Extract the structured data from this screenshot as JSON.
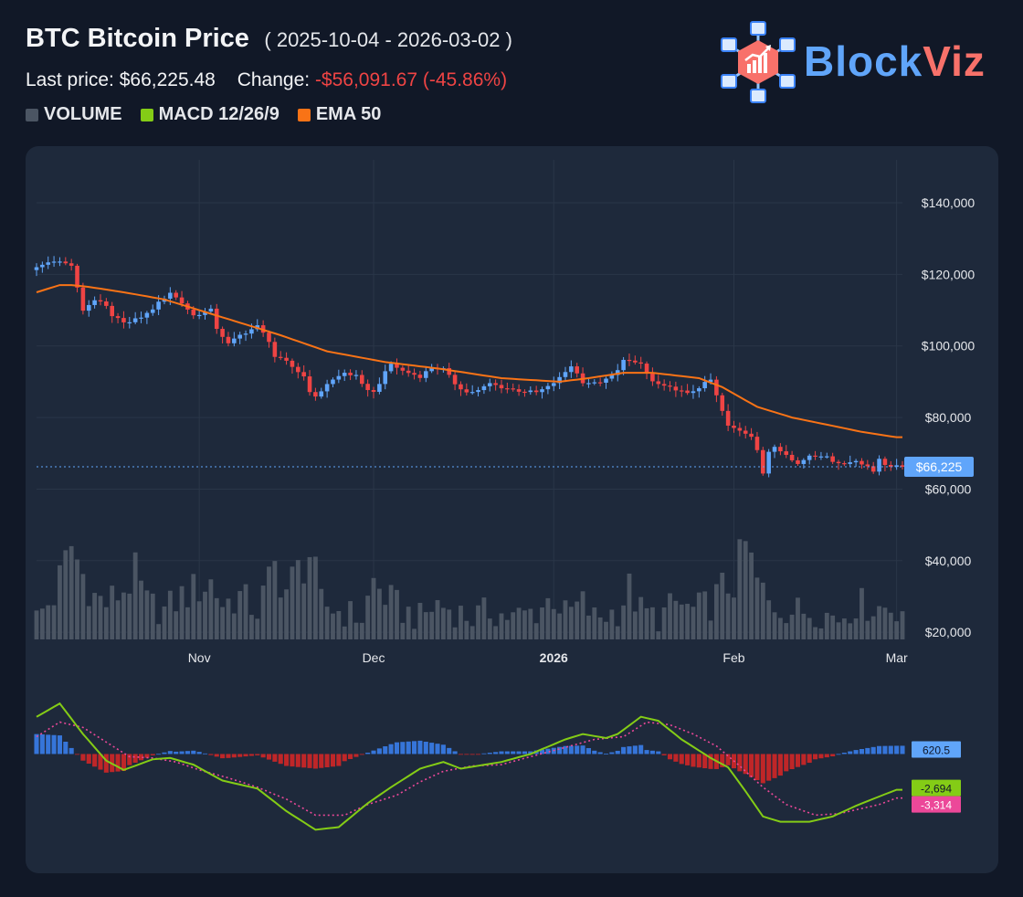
{
  "header": {
    "title": "BTC Bitcoin Price",
    "date_range": "( 2025-10-04 - 2026-03-02 )",
    "last_price_label": "Last price:",
    "last_price_value": "$66,225.48",
    "change_label": "Change:",
    "change_value": "-$56,091.67 (-45.86%)"
  },
  "logo": {
    "part1": "Block",
    "part2": "Viz"
  },
  "legend": [
    {
      "label": "VOLUME",
      "color": "#4b5563"
    },
    {
      "label": "MACD 12/26/9",
      "color": "#84cc16"
    },
    {
      "label": "EMA 50",
      "color": "#f97316"
    }
  ],
  "chart_data": [
    {
      "type": "candlestick",
      "title": "BTC Bitcoin Price",
      "y_axis": {
        "ticks": [
          "$140,000",
          "$120,000",
          "$100,000",
          "$80,000",
          "$60,000",
          "$40,000",
          "$20,000"
        ],
        "tick_values": [
          140000,
          120000,
          100000,
          80000,
          60000,
          40000,
          20000
        ],
        "range": [
          18000,
          152000
        ]
      },
      "x_axis": {
        "ticks": [
          "Nov",
          "Dec",
          "2026",
          "Feb",
          "Mar"
        ],
        "tick_index": [
          28,
          58,
          89,
          120,
          148
        ],
        "range_index": [
          0,
          149
        ]
      },
      "last_price_label": "$66,225",
      "last_price": 66225,
      "colors": {
        "up": "#60a5fa",
        "down": "#ef4444",
        "ema": "#f97316",
        "volume": "#4b5563",
        "grid": "#2a3648",
        "last": "#60a5fa"
      },
      "close_anchors": [
        [
          0,
          122000
        ],
        [
          3,
          124000
        ],
        [
          6,
          122500
        ],
        [
          7,
          116000
        ],
        [
          8,
          110000
        ],
        [
          10,
          113000
        ],
        [
          12,
          111000
        ],
        [
          13,
          108000
        ],
        [
          16,
          106500
        ],
        [
          19,
          109000
        ],
        [
          22,
          113500
        ],
        [
          23,
          115000
        ],
        [
          25,
          112000
        ],
        [
          27,
          108500
        ],
        [
          30,
          110000
        ],
        [
          31,
          105000
        ],
        [
          33,
          100500
        ],
        [
          35,
          103000
        ],
        [
          38,
          105500
        ],
        [
          40,
          101500
        ],
        [
          41,
          97000
        ],
        [
          43,
          95500
        ],
        [
          46,
          91500
        ],
        [
          47,
          87500
        ],
        [
          48,
          85500
        ],
        [
          50,
          89500
        ],
        [
          53,
          92500
        ],
        [
          55,
          91500
        ],
        [
          56,
          89000
        ],
        [
          58,
          87000
        ],
        [
          60,
          92500
        ],
        [
          61,
          95000
        ],
        [
          63,
          93000
        ],
        [
          66,
          91500
        ],
        [
          68,
          94000
        ],
        [
          70,
          93500
        ],
        [
          72,
          89500
        ],
        [
          74,
          87000
        ],
        [
          76,
          87500
        ],
        [
          78,
          89500
        ],
        [
          80,
          88500
        ],
        [
          83,
          87500
        ],
        [
          86,
          87000
        ],
        [
          88,
          88500
        ],
        [
          90,
          91000
        ],
        [
          92,
          94500
        ],
        [
          94,
          90000
        ],
        [
          96,
          89500
        ],
        [
          98,
          90500
        ],
        [
          100,
          93000
        ],
        [
          101,
          96500
        ],
        [
          103,
          95000
        ],
        [
          104,
          95000
        ],
        [
          106,
          90000
        ],
        [
          108,
          88500
        ],
        [
          110,
          88000
        ],
        [
          112,
          86500
        ],
        [
          114,
          88500
        ],
        [
          116,
          90500
        ],
        [
          117,
          86000
        ],
        [
          119,
          77500
        ],
        [
          121,
          76500
        ],
        [
          123,
          75000
        ],
        [
          124,
          71000
        ],
        [
          125,
          64000
        ],
        [
          126,
          70500
        ],
        [
          127,
          72000
        ],
        [
          129,
          70000
        ],
        [
          130,
          68000
        ],
        [
          131,
          67000
        ],
        [
          133,
          69500
        ],
        [
          135,
          69500
        ],
        [
          137,
          68000
        ],
        [
          139,
          67000
        ],
        [
          141,
          68000
        ],
        [
          143,
          66500
        ],
        [
          144,
          64500
        ],
        [
          145,
          68500
        ],
        [
          146,
          67000
        ],
        [
          147,
          66500
        ],
        [
          148,
          66225
        ]
      ],
      "ema_anchors": [
        [
          0,
          115000
        ],
        [
          4,
          117000
        ],
        [
          6,
          117000
        ],
        [
          9,
          116500
        ],
        [
          15,
          115000
        ],
        [
          22,
          113000
        ],
        [
          32,
          108000
        ],
        [
          42,
          103000
        ],
        [
          50,
          98500
        ],
        [
          60,
          95500
        ],
        [
          70,
          93500
        ],
        [
          80,
          91000
        ],
        [
          90,
          90000
        ],
        [
          95,
          91000
        ],
        [
          101,
          92500
        ],
        [
          106,
          92500
        ],
        [
          114,
          91000
        ],
        [
          118,
          88500
        ],
        [
          124,
          83000
        ],
        [
          130,
          80000
        ],
        [
          136,
          78000
        ],
        [
          142,
          76000
        ],
        [
          148,
          74500
        ]
      ],
      "volume_anchors": [
        [
          0,
          24000
        ],
        [
          3,
          30000
        ],
        [
          6,
          44000
        ],
        [
          8,
          36000
        ],
        [
          10,
          30000
        ],
        [
          12,
          28000
        ],
        [
          15,
          32000
        ],
        [
          17,
          36000
        ],
        [
          19,
          28000
        ],
        [
          22,
          26000
        ],
        [
          25,
          30000
        ],
        [
          30,
          34000
        ],
        [
          32,
          28000
        ],
        [
          35,
          30000
        ],
        [
          38,
          26000
        ],
        [
          41,
          38000
        ],
        [
          43,
          32000
        ],
        [
          47,
          42000
        ],
        [
          49,
          28000
        ],
        [
          52,
          26000
        ],
        [
          56,
          24000
        ],
        [
          58,
          34000
        ],
        [
          60,
          30000
        ],
        [
          63,
          26000
        ],
        [
          66,
          24000
        ],
        [
          69,
          28000
        ],
        [
          72,
          26000
        ],
        [
          75,
          24000
        ],
        [
          78,
          26000
        ],
        [
          82,
          24000
        ],
        [
          86,
          26000
        ],
        [
          89,
          30000
        ],
        [
          91,
          25000
        ],
        [
          94,
          28000
        ],
        [
          96,
          24000
        ],
        [
          100,
          26000
        ],
        [
          102,
          32000
        ],
        [
          104,
          26000
        ],
        [
          107,
          24000
        ],
        [
          110,
          28000
        ],
        [
          113,
          26000
        ],
        [
          116,
          28000
        ],
        [
          118,
          32000
        ],
        [
          120,
          34000
        ],
        [
          122,
          44000
        ],
        [
          124,
          34000
        ],
        [
          126,
          28000
        ],
        [
          130,
          26000
        ],
        [
          134,
          26000
        ],
        [
          138,
          24000
        ],
        [
          141,
          28000
        ],
        [
          145,
          27000
        ],
        [
          148,
          27000
        ]
      ]
    },
    {
      "type": "line",
      "title": "MACD 12/26/9",
      "series": [
        {
          "name": "MACD 12/26/9",
          "color": "#84cc16",
          "anchors": [
            [
              0,
              2800
            ],
            [
              4,
              3800
            ],
            [
              8,
              1500
            ],
            [
              12,
              -500
            ],
            [
              15,
              -1200
            ],
            [
              20,
              -400
            ],
            [
              23,
              -300
            ],
            [
              27,
              -800
            ],
            [
              32,
              -2000
            ],
            [
              38,
              -2600
            ],
            [
              43,
              -4300
            ],
            [
              48,
              -5700
            ],
            [
              52,
              -5500
            ],
            [
              57,
              -3700
            ],
            [
              61,
              -2500
            ],
            [
              66,
              -1100
            ],
            [
              70,
              -600
            ],
            [
              73,
              -1100
            ],
            [
              80,
              -600
            ],
            [
              85,
              0
            ],
            [
              91,
              1100
            ],
            [
              94,
              1500
            ],
            [
              98,
              1200
            ],
            [
              100,
              1500
            ],
            [
              104,
              2800
            ],
            [
              107,
              2500
            ],
            [
              111,
              1100
            ],
            [
              116,
              -300
            ],
            [
              119,
              -1000
            ],
            [
              122,
              -2800
            ],
            [
              125,
              -4700
            ],
            [
              128,
              -5100
            ],
            [
              133,
              -5100
            ],
            [
              137,
              -4700
            ],
            [
              141,
              -3900
            ],
            [
              145,
              -3200
            ],
            [
              148,
              -2694
            ]
          ]
        },
        {
          "color": "#ec4899",
          "dashed": true,
          "anchors": [
            [
              0,
              1300
            ],
            [
              4,
              2400
            ],
            [
              8,
              2000
            ],
            [
              12,
              900
            ],
            [
              16,
              -200
            ],
            [
              20,
              -300
            ],
            [
              24,
              -600
            ],
            [
              28,
              -1200
            ],
            [
              33,
              -1800
            ],
            [
              38,
              -2500
            ],
            [
              43,
              -3400
            ],
            [
              48,
              -4600
            ],
            [
              53,
              -4600
            ],
            [
              57,
              -3800
            ],
            [
              62,
              -3100
            ],
            [
              66,
              -2100
            ],
            [
              70,
              -1300
            ],
            [
              75,
              -900
            ],
            [
              80,
              -800
            ],
            [
              85,
              -200
            ],
            [
              91,
              500
            ],
            [
              96,
              1100
            ],
            [
              101,
              1300
            ],
            [
              105,
              2400
            ],
            [
              109,
              2200
            ],
            [
              113,
              1500
            ],
            [
              117,
              600
            ],
            [
              121,
              -900
            ],
            [
              125,
              -2500
            ],
            [
              129,
              -3800
            ],
            [
              134,
              -4600
            ],
            [
              138,
              -4500
            ],
            [
              142,
              -4100
            ],
            [
              145,
              -3800
            ],
            [
              148,
              -3314
            ]
          ]
        }
      ],
      "histogram_color_pos": "#3b82f6",
      "histogram_color_neg": "#dc2626",
      "labels": {
        "histogram": "620.5",
        "macd": "-2,694",
        "signal": "-3,314"
      },
      "label_colors": {
        "histogram": "#60a5fa",
        "macd": "#84cc16",
        "signal": "#ec4899"
      },
      "range": [
        -6500,
        4500
      ]
    }
  ]
}
